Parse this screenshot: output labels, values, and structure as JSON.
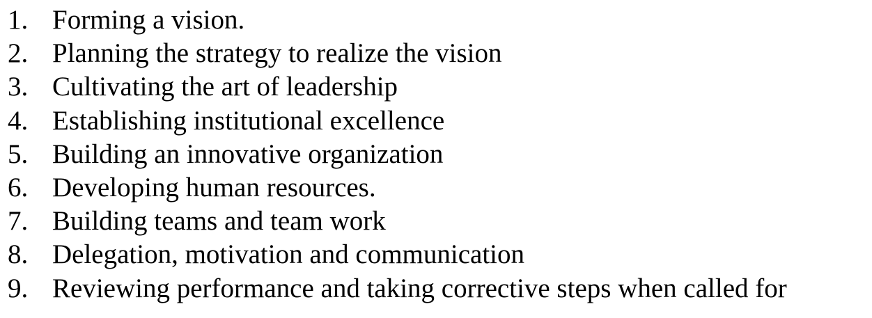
{
  "list": {
    "items": [
      {
        "number": "1.",
        "text": "Forming a vision."
      },
      {
        "number": "2.",
        "text": "Planning the strategy to realize the vision"
      },
      {
        "number": "3.",
        "text": "Cultivating the art of leadership"
      },
      {
        "number": "4.",
        "text": "Establishing institutional excellence"
      },
      {
        "number": "5.",
        "text": "Building an innovative organization"
      },
      {
        "number": "6.",
        "text": "Developing human resources."
      },
      {
        "number": "7.",
        "text": "Building teams and team work"
      },
      {
        "number": "8.",
        "text": "Delegation, motivation and communication"
      },
      {
        "number": "9.",
        "text": "Reviewing performance and taking corrective steps when called for"
      }
    ]
  }
}
